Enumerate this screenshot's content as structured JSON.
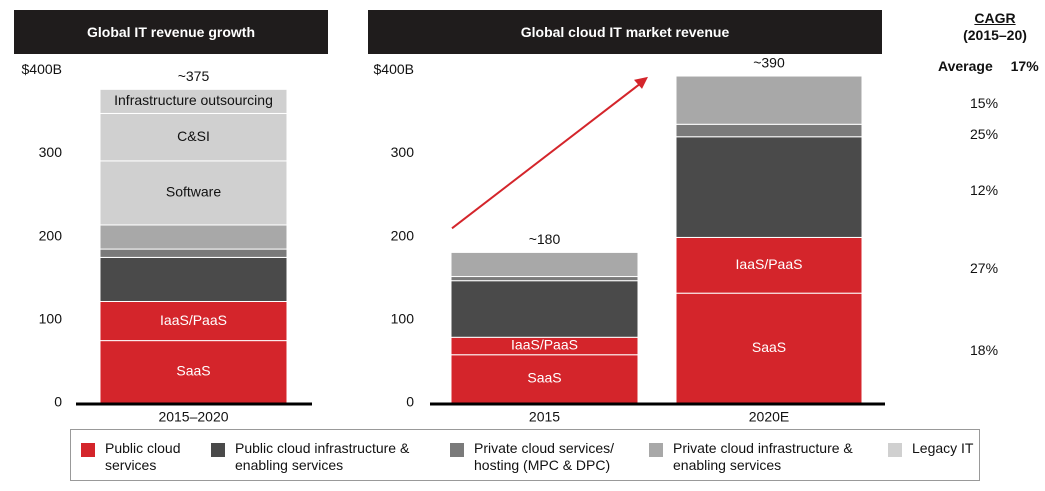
{
  "headers": {
    "left": "Global IT revenue growth",
    "right": "Global cloud IT market revenue"
  },
  "cagr": {
    "title_line1": "CAGR",
    "title_line2": "(2015–20)",
    "average_label": "Average",
    "average_value": "17%",
    "values": [
      "15%",
      "25%",
      "12%",
      "27%",
      "18%"
    ]
  },
  "colors": {
    "public_cloud": "#d4252b",
    "public_infra": "#4a4a4a",
    "private_services": "#7a7a7a",
    "private_infra": "#a8a8a8",
    "legacy": "#d0d0d0",
    "arrow": "#d4252b"
  },
  "chart_data": [
    {
      "type": "bar",
      "stacked": true,
      "title": "Global IT revenue growth",
      "categories": [
        "2015–2020"
      ],
      "ylim": [
        0,
        400
      ],
      "yticks": [
        "0",
        "100",
        "200",
        "300",
        "$400B"
      ],
      "total_labels": [
        "~375"
      ],
      "segments": [
        {
          "name": "SaaS",
          "value": 75,
          "color": "#d4252b",
          "label": "SaaS"
        },
        {
          "name": "IaaS/PaaS",
          "value": 47,
          "color": "#d4252b",
          "label": "IaaS/PaaS"
        },
        {
          "name": "Public cloud infrastructure & enabling services",
          "value": 53,
          "color": "#4a4a4a",
          "label": ""
        },
        {
          "name": "Private cloud services/ hosting (MPC & DPC)",
          "value": 10,
          "color": "#7a7a7a",
          "label": ""
        },
        {
          "name": "Private cloud infrastructure & enabling services",
          "value": 29,
          "color": "#a8a8a8",
          "label": ""
        },
        {
          "name": "Software",
          "value": 77,
          "color": "#d0d0d0",
          "label": "Software"
        },
        {
          "name": "C&SI",
          "value": 57,
          "color": "#d0d0d0",
          "label": "C&SI"
        },
        {
          "name": "Infrastructure outsourcing",
          "value": 29,
          "color": "#d0d0d0",
          "label": "Infrastructure outsourcing"
        }
      ]
    },
    {
      "type": "bar",
      "stacked": true,
      "title": "Global cloud IT market revenue",
      "categories": [
        "2015",
        "2020E"
      ],
      "ylim": [
        0,
        400
      ],
      "yticks": [
        "0",
        "100",
        "200",
        "300",
        "$400B"
      ],
      "total_labels": [
        "~180",
        "~390"
      ],
      "series": [
        {
          "name": "SaaS",
          "values": [
            58,
            132
          ],
          "color": "#d4252b",
          "labels": [
            "SaaS",
            "SaaS"
          ]
        },
        {
          "name": "IaaS/PaaS",
          "values": [
            21,
            67
          ],
          "color": "#d4252b",
          "labels": [
            "IaaS/PaaS",
            "IaaS/PaaS"
          ]
        },
        {
          "name": "Public cloud infrastructure & enabling services",
          "values": [
            68,
            121
          ],
          "color": "#4a4a4a",
          "labels": [
            "",
            ""
          ]
        },
        {
          "name": "Private cloud services/ hosting (MPC & DPC)",
          "values": [
            5,
            15
          ],
          "color": "#7a7a7a",
          "labels": [
            "",
            ""
          ]
        },
        {
          "name": "Private cloud infrastructure & enabling services",
          "values": [
            29,
            58
          ],
          "color": "#a8a8a8",
          "labels": [
            "",
            ""
          ]
        }
      ]
    }
  ],
  "legend": [
    {
      "line1": "Public cloud",
      "line2": "services",
      "color": "#d4252b"
    },
    {
      "line1": "Public cloud infrastructure &",
      "line2": "enabling services",
      "color": "#4a4a4a"
    },
    {
      "line1": "Private cloud services/",
      "line2": "hosting (MPC & DPC)",
      "color": "#7a7a7a"
    },
    {
      "line1": "Private cloud infrastructure &",
      "line2": "enabling services",
      "color": "#a8a8a8"
    },
    {
      "line1": "Legacy IT",
      "line2": "",
      "color": "#d0d0d0"
    }
  ]
}
